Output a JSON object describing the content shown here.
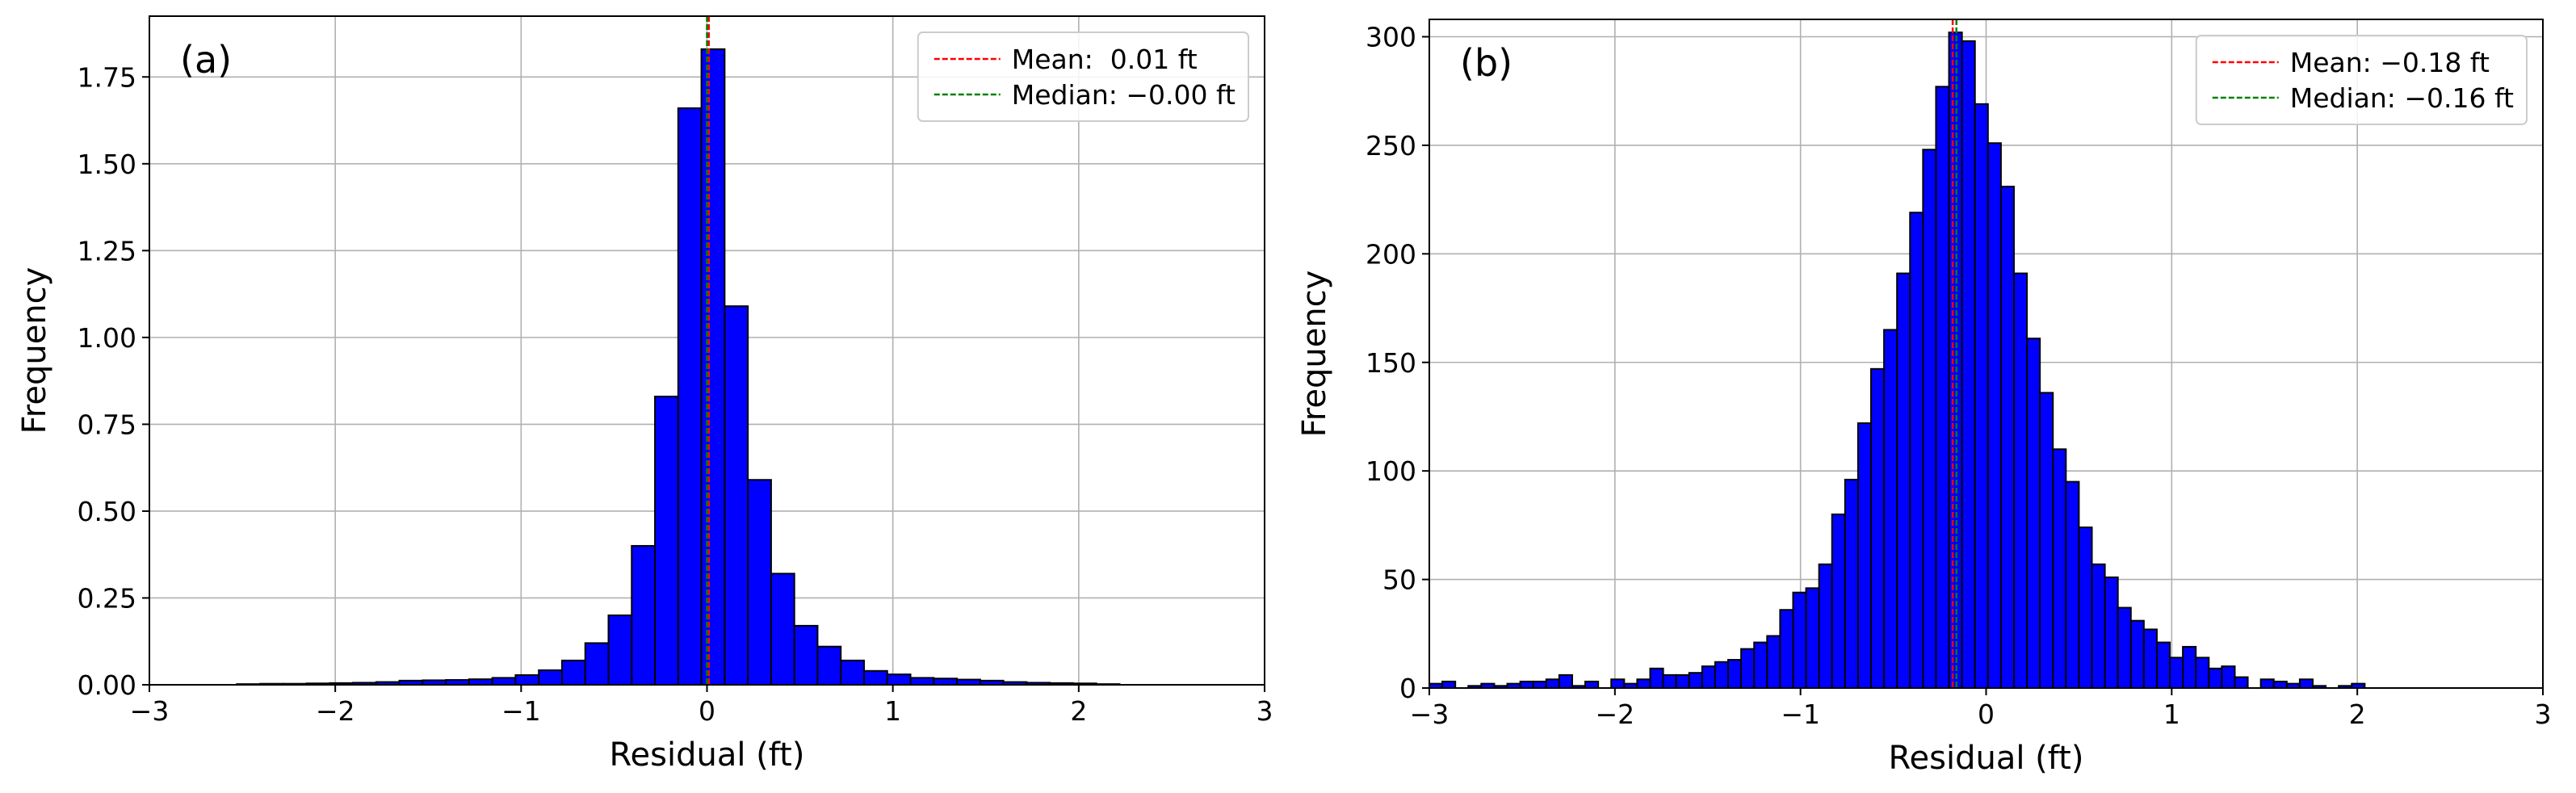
{
  "chart_data": [
    {
      "type": "histogram",
      "annotation": "(a)",
      "xlabel": "Residual (ft)",
      "ylabel": "Frequency",
      "bins": [
        -2.53,
        -2.405,
        -2.28,
        -2.155,
        -2.03,
        -1.905,
        -1.78,
        -1.655,
        -1.53,
        -1.405,
        -1.28,
        -1.155,
        -1.03,
        -0.905,
        -0.78,
        -0.655,
        -0.53,
        -0.405,
        -0.28,
        -0.155,
        -0.03,
        0.095,
        0.22,
        0.345,
        0.47,
        0.595,
        0.72,
        0.845,
        0.97,
        1.095,
        1.22,
        1.345,
        1.47,
        1.595,
        1.72,
        1.845,
        1.97,
        2.095,
        2.22
      ],
      "values": [
        0.002,
        0.003,
        0.003,
        0.004,
        0.005,
        0.006,
        0.008,
        0.012,
        0.013,
        0.014,
        0.016,
        0.02,
        0.028,
        0.042,
        0.07,
        0.12,
        0.2,
        0.4,
        0.83,
        1.66,
        1.83,
        1.09,
        0.59,
        0.32,
        0.17,
        0.11,
        0.07,
        0.04,
        0.03,
        0.02,
        0.018,
        0.015,
        0.012,
        0.008,
        0.006,
        0.005,
        0.004,
        0.002
      ],
      "color": "#0000ff",
      "vlines": [
        {
          "name": "Mean:  0.01 ft",
          "value": 0.01,
          "color": "#ff0000"
        },
        {
          "name": "Median: −0.00 ft",
          "value": 0,
          "color": "#008000"
        }
      ],
      "xlim": [
        -3,
        3
      ],
      "xticks": [
        {
          "value": -3,
          "label": "−3"
        },
        {
          "value": -2,
          "label": "−2"
        },
        {
          "value": -1,
          "label": "−1"
        },
        0,
        1,
        2,
        3
      ],
      "ylim": [
        0,
        1.925
      ],
      "yticks": [
        {
          "value": 0,
          "label": "0.00"
        },
        {
          "value": 0.25,
          "label": "0.25"
        },
        {
          "value": 0.5,
          "label": "0.50"
        },
        {
          "value": 0.75,
          "label": "0.75"
        },
        {
          "value": 1,
          "label": "1.00"
        },
        {
          "value": 1.25,
          "label": "1.25"
        },
        {
          "value": 1.5,
          "label": "1.50"
        },
        {
          "value": 1.75,
          "label": "1.75"
        }
      ],
      "grid": true,
      "legend": "upper right"
    },
    {
      "type": "histogram",
      "annotation": "(b)",
      "xlabel": "Residual (ft)",
      "ylabel": "Frequency",
      "bins": [
        -3.0,
        -2.93,
        -2.86,
        -2.79,
        -2.72,
        -2.65,
        -2.58,
        -2.51,
        -2.44,
        -2.37,
        -2.3,
        -2.23,
        -2.16,
        -2.09,
        -2.02,
        -1.95,
        -1.88,
        -1.81,
        -1.74,
        -1.67,
        -1.6,
        -1.53,
        -1.46,
        -1.39,
        -1.32,
        -1.25,
        -1.18,
        -1.11,
        -1.04,
        -0.97,
        -0.9,
        -0.83,
        -0.76,
        -0.69,
        -0.62,
        -0.55,
        -0.48,
        -0.41,
        -0.34,
        -0.27,
        -0.2,
        -0.13,
        -0.06,
        0.01,
        0.08,
        0.15,
        0.22,
        0.29,
        0.36,
        0.43,
        0.5,
        0.57,
        0.64,
        0.71,
        0.78,
        0.85,
        0.92,
        0.99,
        1.06,
        1.13,
        1.2,
        1.27,
        1.34,
        1.41,
        1.48,
        1.55,
        1.62,
        1.69,
        1.76,
        1.83,
        1.9,
        1.97,
        2.04
      ],
      "values": [
        2,
        3,
        0,
        1,
        2,
        1,
        2,
        3,
        3,
        4,
        6,
        1,
        3,
        0,
        4,
        2,
        4,
        9,
        6,
        6,
        7,
        10,
        12,
        13,
        18,
        21,
        24,
        36,
        44,
        46,
        57,
        80,
        96,
        122,
        147,
        165,
        191,
        219,
        248,
        277,
        302,
        298,
        269,
        251,
        231,
        191,
        161,
        136,
        110,
        95,
        74,
        57,
        51,
        37,
        31,
        27,
        21,
        14,
        19,
        14,
        9,
        10,
        5,
        0,
        4,
        3,
        2,
        4,
        1,
        0,
        1,
        2
      ],
      "color": "#0000ff",
      "vlines": [
        {
          "name": "Mean: −0.18 ft",
          "value": -0.18,
          "color": "#ff0000"
        },
        {
          "name": "Median: −0.16 ft",
          "value": -0.16,
          "color": "#008000"
        }
      ],
      "xlim": [
        -3,
        3
      ],
      "xticks": [
        {
          "value": -3,
          "label": "−3"
        },
        {
          "value": -2,
          "label": "−2"
        },
        {
          "value": -1,
          "label": "−1"
        },
        0,
        1,
        2,
        3
      ],
      "ylim": [
        0,
        308
      ],
      "yticks": [
        0,
        50,
        100,
        150,
        200,
        250,
        300
      ],
      "grid": true,
      "legend": "upper right"
    }
  ]
}
